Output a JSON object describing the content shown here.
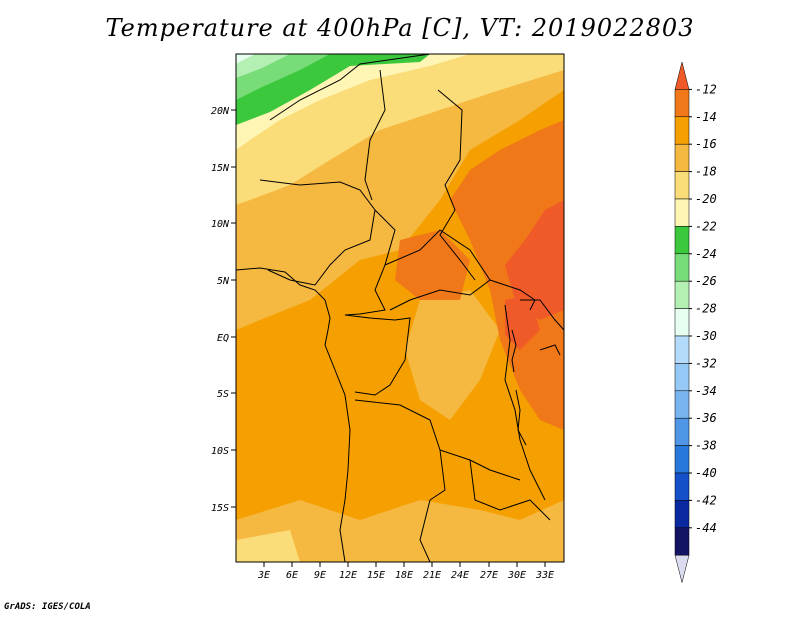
{
  "title": "Temperature at 400hPa [C], VT: 2019022803",
  "credit": "GrADS: IGES/COLA",
  "lat_labels": [
    "20N",
    "15N",
    "10N",
    "5N",
    "EQ",
    "5S",
    "10S",
    "15S"
  ],
  "lon_labels": [
    "3E",
    "6E",
    "9E",
    "12E",
    "15E",
    "18E",
    "21E",
    "24E",
    "27E",
    "30E",
    "33E"
  ],
  "colorbar": {
    "labels": [
      "-12",
      "-14",
      "-16",
      "-18",
      "-20",
      "-22",
      "-24",
      "-26",
      "-28",
      "-30",
      "-32",
      "-34",
      "-36",
      "-38",
      "-40",
      "-42",
      "-44"
    ],
    "colors": [
      "#f05a28",
      "#f07818",
      "#f5a000",
      "#f5b840",
      "#fadc78",
      "#fff5b4",
      "#3cc83c",
      "#78dc78",
      "#b4f0b4",
      "#e6fff0",
      "#b4dcfa",
      "#96c8f5",
      "#78b4f0",
      "#5096e6",
      "#2878dc",
      "#1450c8",
      "#0a28a0",
      "#141464",
      "#dcdcf0"
    ]
  }
}
